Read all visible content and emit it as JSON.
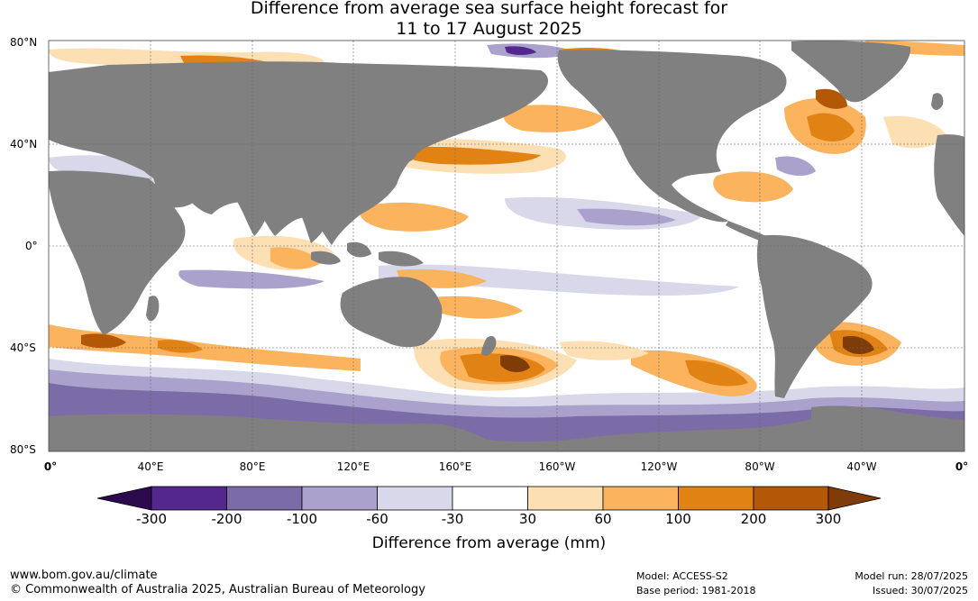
{
  "title": {
    "line1": "Difference from average sea surface height forecast for",
    "line2": "11 to 17 August 2025"
  },
  "map": {
    "lat_labels": [
      "80°N",
      "40°N",
      "0°",
      "40°S",
      "80°S"
    ],
    "lon_labels": [
      "0°",
      "40°E",
      "80°E",
      "120°E",
      "160°E",
      "160°W",
      "120°W",
      "80°W",
      "40°W",
      "0°"
    ],
    "land_color": "#808080",
    "ocean_color": "#ffffff",
    "gridlines": true
  },
  "legend": {
    "title": "Difference from average (mm)",
    "tick_labels": [
      "-300",
      "-200",
      "-100",
      "-60",
      "-30",
      "30",
      "60",
      "100",
      "200",
      "300"
    ],
    "colors": {
      "below_-300": "#2d0a4e",
      "-300_-200": "#54278f",
      "-200_-100": "#7b6ca8",
      "-100_-60": "#aaa2cc",
      "-60_-30": "#d9d8eb",
      "-30_30": "#ffffff",
      "30_60": "#fddfb4",
      "60_100": "#fbb35e",
      "100_200": "#e08214",
      "200_300": "#b35806",
      "above_300": "#7f3b08"
    }
  },
  "footer": {
    "website": "www.bom.gov.au/climate",
    "copyright": "© Commonwealth of Australia 2025, Australian Bureau of Meteorology",
    "model": "Model: ACCESS-S2",
    "base_period": "Base period: 1981-2018",
    "model_run": "Model run: 28/07/2025",
    "issued": "Issued: 30/07/2025"
  }
}
